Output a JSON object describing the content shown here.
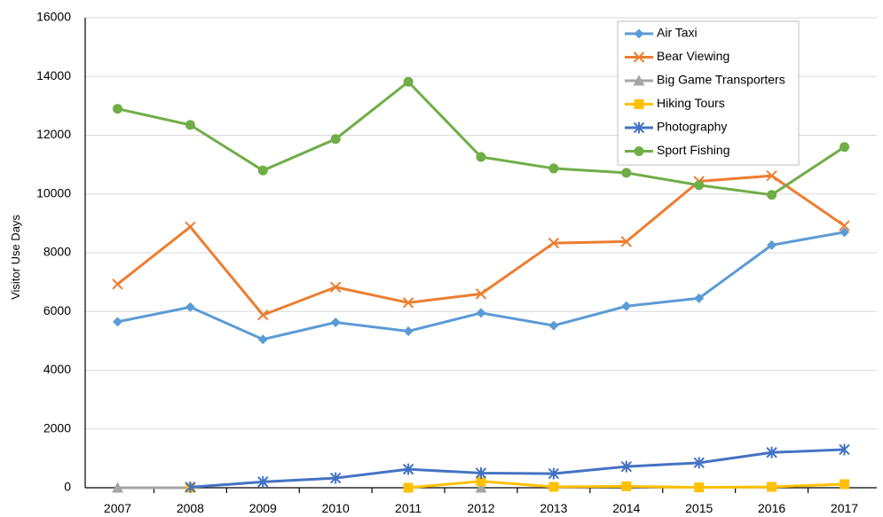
{
  "chart_data": {
    "type": "line",
    "title": "",
    "xlabel": "",
    "ylabel": "Visitor Use Days",
    "categories": [
      "2007",
      "2008",
      "2009",
      "2010",
      "2011",
      "2012",
      "2013",
      "2014",
      "2015",
      "2016",
      "2017"
    ],
    "ylim": [
      0,
      16000
    ],
    "yticks": [
      0,
      2000,
      4000,
      6000,
      8000,
      10000,
      12000,
      14000,
      16000
    ],
    "grid": true,
    "legend_position": "top-right",
    "series": [
      {
        "name": "Air Taxi",
        "color": "#5b9bd5",
        "marker": "diamond",
        "values": [
          5650,
          6150,
          5050,
          5630,
          5330,
          5950,
          5520,
          6180,
          6450,
          8260,
          8700
        ]
      },
      {
        "name": "Bear Viewing",
        "color": "#ed7d31",
        "marker": "x",
        "values": [
          6930,
          8880,
          5880,
          6830,
          6300,
          6600,
          8330,
          8380,
          10430,
          10620,
          8920
        ]
      },
      {
        "name": "Big Game Transporters",
        "color": "#a5a5a5",
        "marker": "triangle",
        "values": [
          0,
          0,
          null,
          null,
          null,
          0,
          null,
          null,
          null,
          null,
          null
        ]
      },
      {
        "name": "Hiking Tours",
        "color": "#ffc000",
        "marker": "square",
        "values": [
          null,
          0,
          null,
          null,
          0,
          220,
          30,
          50,
          10,
          30,
          120
        ]
      },
      {
        "name": "Photography",
        "color": "#4472c4",
        "marker": "star",
        "values": [
          null,
          20,
          200,
          330,
          630,
          500,
          480,
          720,
          850,
          1200,
          1300
        ]
      },
      {
        "name": "Sport Fishing",
        "color": "#70ad47",
        "marker": "circle",
        "values": [
          12900,
          12350,
          10800,
          11870,
          13820,
          11260,
          10870,
          10720,
          10300,
          9970,
          11600
        ]
      }
    ]
  }
}
